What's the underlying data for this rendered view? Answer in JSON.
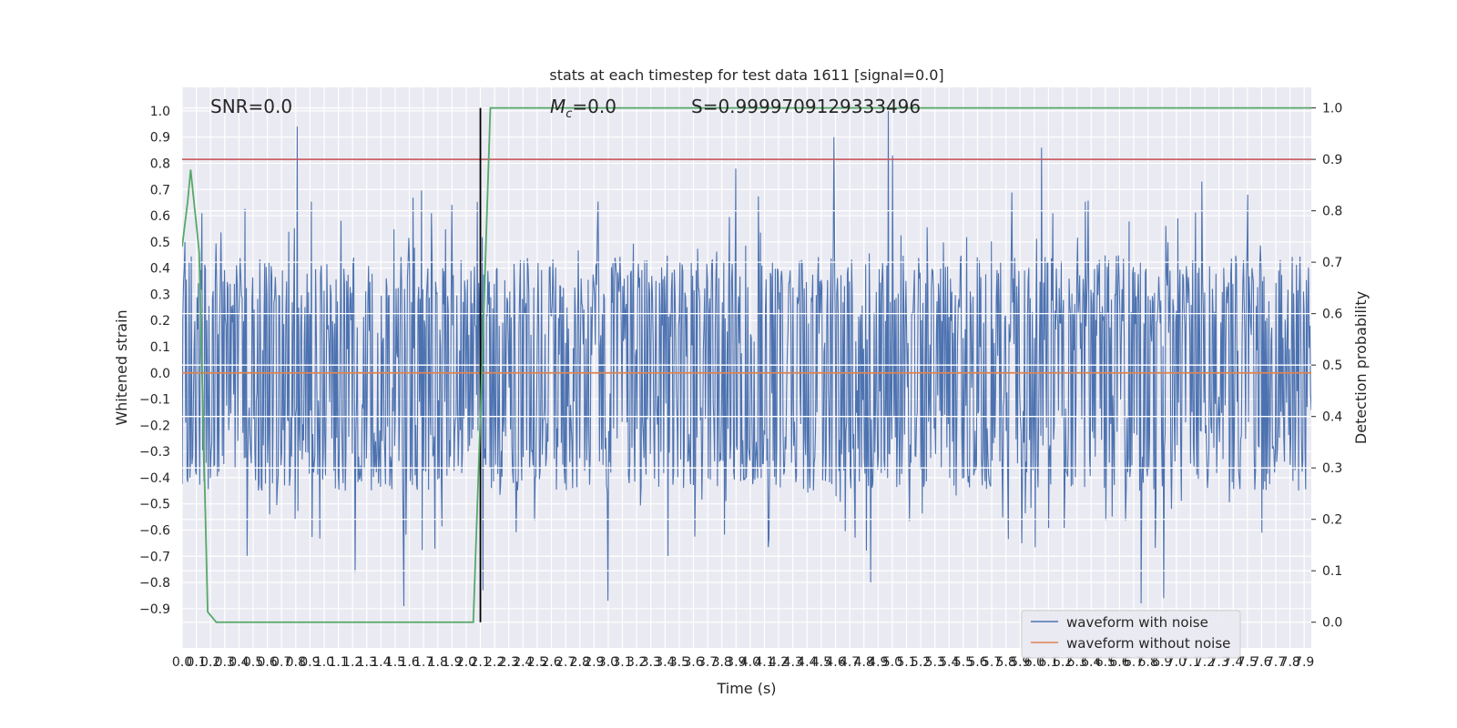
{
  "chart_data": {
    "type": "line",
    "title": "stats at each timestep for test data 1611 [signal=0.0]",
    "xlabel": "Time (s)",
    "ylabel": "Whitened strain",
    "y2label": "Detection probability",
    "xlim": [
      0.0,
      7.95
    ],
    "ylim": [
      -1.05,
      1.09
    ],
    "y2lim": [
      -0.05,
      1.04
    ],
    "grid": true,
    "x_ticks": [
      0.0,
      0.1,
      0.2,
      0.3,
      0.4,
      0.5,
      0.6,
      0.7,
      0.8,
      0.9,
      1.0,
      1.1,
      1.2,
      1.3,
      1.4,
      1.5,
      1.6,
      1.7,
      1.8,
      1.9,
      2.0,
      2.1,
      2.2,
      2.3,
      2.4,
      2.5,
      2.6,
      2.7,
      2.8,
      2.9,
      3.0,
      3.1,
      3.2,
      3.3,
      3.4,
      3.5,
      3.6,
      3.7,
      3.8,
      3.9,
      4.0,
      4.1,
      4.2,
      4.3,
      4.4,
      4.5,
      4.6,
      4.7,
      4.8,
      4.9,
      5.0,
      5.1,
      5.2,
      5.3,
      5.4,
      5.5,
      5.6,
      5.7,
      5.8,
      5.9,
      6.0,
      6.1,
      6.2,
      6.3,
      6.4,
      6.5,
      6.6,
      6.7,
      6.8,
      6.9,
      7.0,
      7.1,
      7.2,
      7.3,
      7.4,
      7.5,
      7.6,
      7.7,
      7.8,
      7.9
    ],
    "y_ticks": [
      -0.9,
      -0.8,
      -0.7,
      -0.6,
      -0.5,
      -0.4,
      -0.3,
      -0.2,
      -0.1,
      0.0,
      0.1,
      0.2,
      0.3,
      0.4,
      0.5,
      0.6,
      0.7,
      0.8,
      0.9,
      1.0
    ],
    "y2_ticks": [
      0.0,
      0.1,
      0.2,
      0.3,
      0.4,
      0.5,
      0.6,
      0.7,
      0.8,
      0.9,
      1.0
    ],
    "annotations": {
      "snr": "SNR=0.0",
      "mc": "=0.0",
      "mc_symbol": "M",
      "mc_sub": "c",
      "s": "S=0.9999709129333496"
    },
    "legend": {
      "placement": "lower-right",
      "entries": [
        {
          "name": "waveform with noise",
          "color": "#4c72b0"
        },
        {
          "name": "waveform without noise",
          "color": "#dd8452"
        }
      ]
    },
    "colors": {
      "noise": "#4c72b0",
      "clean": "#dd8452",
      "probability": "#55a868",
      "threshold": "#c44e52",
      "marker": "#000000",
      "background": "#eaeaf2"
    },
    "threshold_y2": 0.9,
    "marker_x": 2.1,
    "series": [
      {
        "name": "waveform with noise",
        "summary": {
          "x_range": [
            0.0,
            7.95
          ],
          "y_min": -0.89,
          "y_max": 1.0,
          "typical_band": [
            -0.45,
            0.45
          ]
        },
        "peaks": [
          [
            0.81,
            0.94
          ],
          [
            0.02,
            0.5
          ],
          [
            3.9,
            0.78
          ],
          [
            4.59,
            0.9
          ],
          [
            4.97,
            1.0
          ],
          [
            5.0,
            0.83
          ],
          [
            6.05,
            0.86
          ],
          [
            7.18,
            0.73
          ]
        ],
        "troughs": [
          [
            1.56,
            -0.89
          ],
          [
            3.0,
            -0.87
          ],
          [
            6.75,
            -0.88
          ],
          [
            6.91,
            -0.86
          ],
          [
            2.12,
            -0.83
          ],
          [
            1.22,
            -0.76
          ],
          [
            4.85,
            -0.8
          ]
        ]
      },
      {
        "name": "waveform without noise",
        "x": [
          0.0,
          7.95
        ],
        "y": [
          0.0,
          0.0
        ]
      },
      {
        "name": "detection probability",
        "axis": "right",
        "x": [
          0.0,
          0.04,
          0.06,
          0.12,
          0.18,
          0.24,
          0.3,
          0.6,
          1.2,
          1.8,
          2.05,
          2.1,
          2.17,
          2.5,
          7.95
        ],
        "y": [
          0.73,
          0.82,
          0.88,
          0.72,
          0.02,
          0.0,
          0.0,
          0.0,
          0.0,
          0.0,
          0.0,
          0.4,
          1.0,
          1.0,
          1.0
        ]
      }
    ]
  }
}
